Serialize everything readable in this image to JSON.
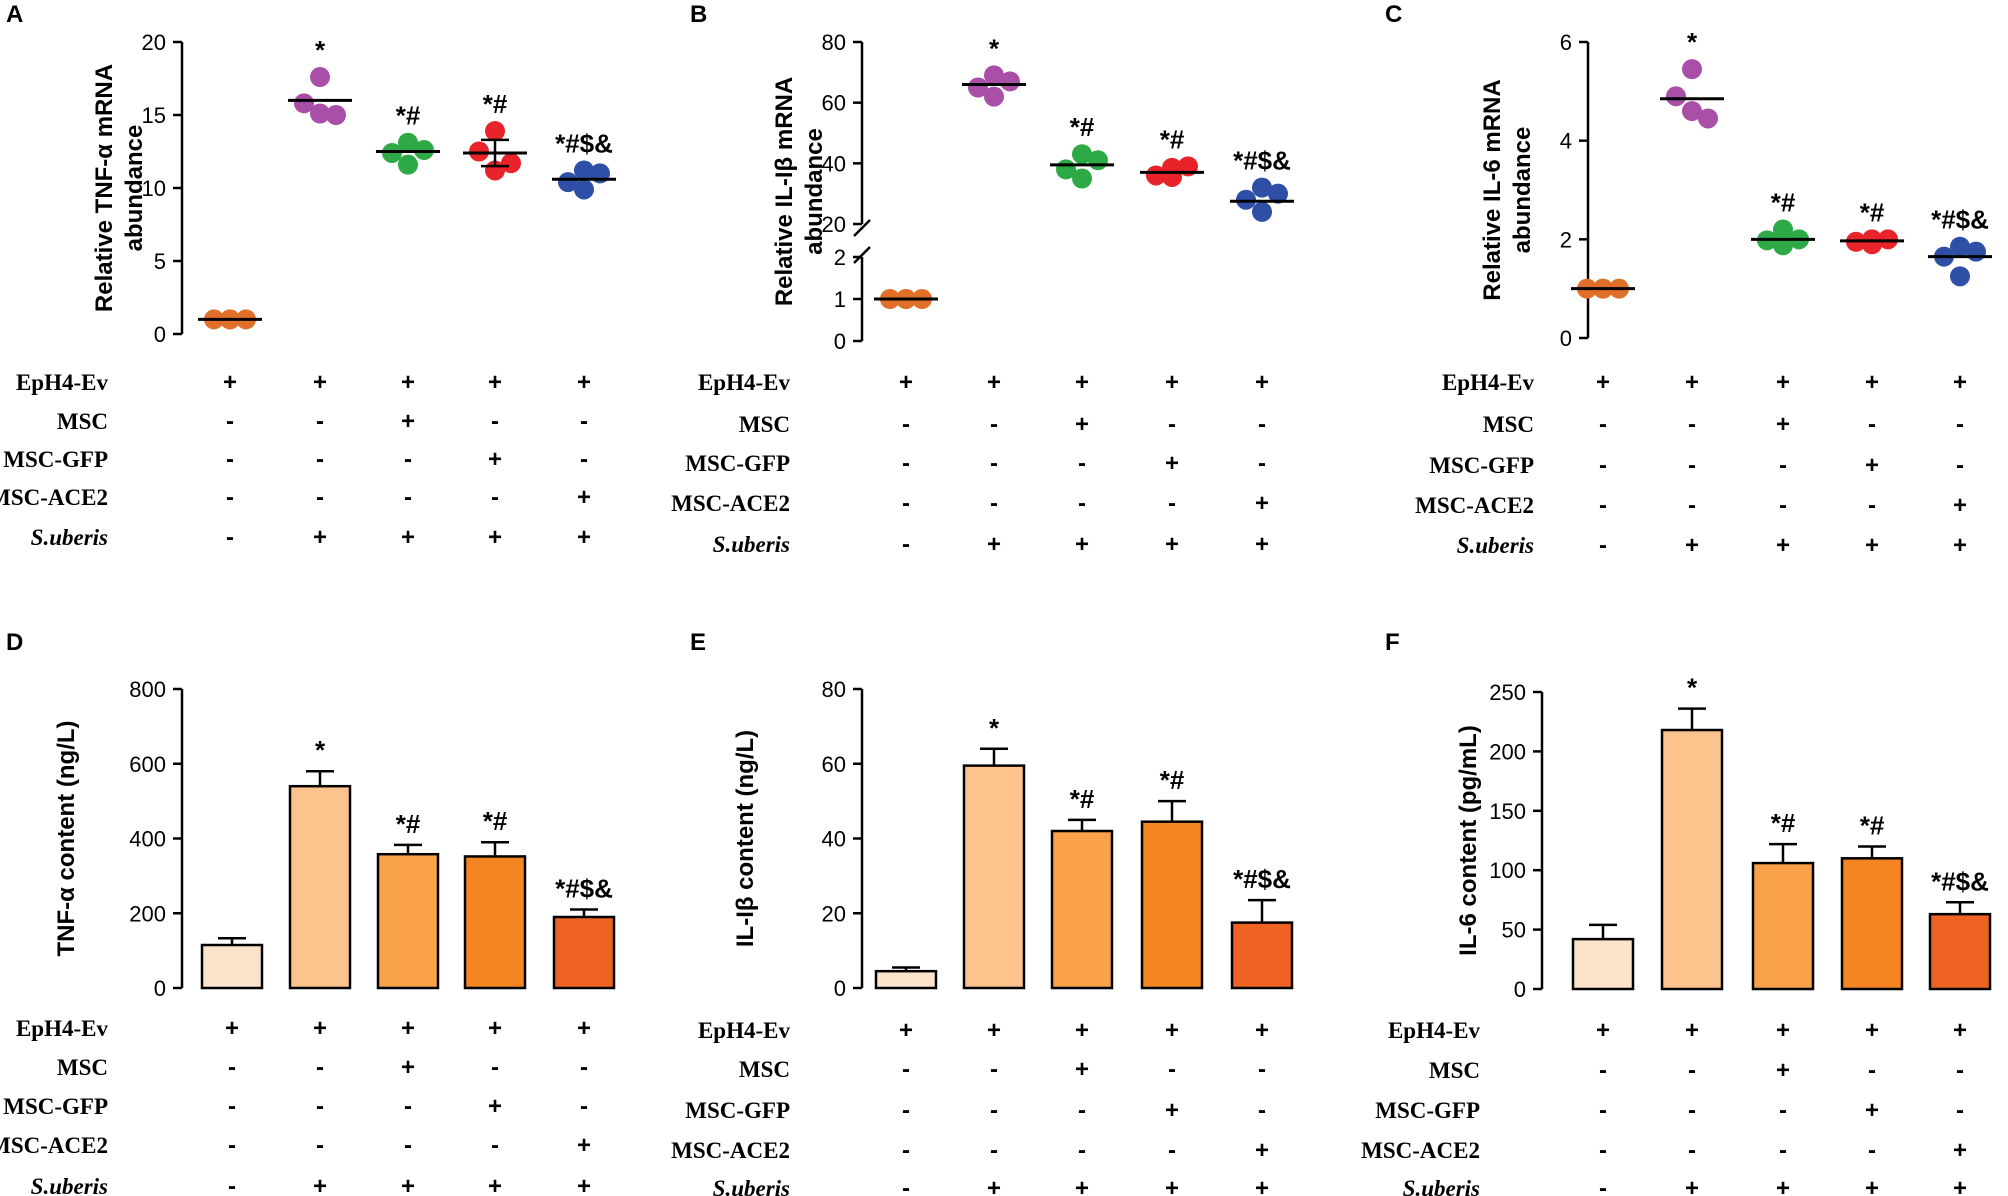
{
  "treatment_rows": [
    "EpH4-Ev",
    "MSC",
    "MSC-GFP",
    "MSC-ACE2",
    "S.uberis"
  ],
  "treatment_signs": [
    [
      "+",
      "+",
      "+",
      "+",
      "+"
    ],
    [
      "-",
      "-",
      "+",
      "-",
      "-"
    ],
    [
      "-",
      "-",
      "-",
      "+",
      "-"
    ],
    [
      "-",
      "-",
      "-",
      "-",
      "+"
    ],
    [
      "-",
      "+",
      "+",
      "+",
      "+"
    ]
  ],
  "group_colors": {
    "scatter": [
      "#E07028",
      "#A94FA7",
      "#2DAA45",
      "#E8232A",
      "#2F4FA6"
    ],
    "bar": [
      "#FCE3CB",
      "#FCC38C",
      "#F9A24A",
      "#F58422",
      "#EE6324"
    ]
  },
  "chart_data": [
    {
      "panel": "A",
      "type": "scatter",
      "ylabel": [
        "Relative TNF-α mRNA",
        "abundance"
      ],
      "ylim": [
        0,
        20
      ],
      "yticks": [
        "0",
        "5",
        "10",
        "15",
        "20"
      ],
      "means": [
        1.0,
        16.0,
        12.5,
        12.4,
        10.6
      ],
      "sems": [
        0.03,
        0.6,
        0.4,
        0.9,
        0.4
      ],
      "points": [
        [
          1.0,
          1.0,
          1.0,
          1.0
        ],
        [
          17.6,
          15.8,
          15.1,
          15.0
        ],
        [
          13.1,
          12.4,
          11.6,
          12.6
        ],
        [
          13.9,
          12.5,
          11.2,
          11.7
        ],
        [
          11.2,
          10.4,
          9.9,
          11.0
        ]
      ],
      "annotations": [
        "",
        "*",
        "*#",
        "*#",
        "*#$&"
      ]
    },
    {
      "panel": "B",
      "type": "scatter",
      "ylabel": [
        "Relative IL-Iβ mRNA",
        "abundance"
      ],
      "axis_break": true,
      "lower_ylim": [
        0,
        2
      ],
      "lower_yticks": [
        "0",
        "1",
        "2"
      ],
      "upper_ylim": [
        20,
        80
      ],
      "upper_yticks": [
        "20",
        "40",
        "60",
        "80"
      ],
      "means": [
        1.0,
        66.0,
        39.5,
        37.0,
        27.5
      ],
      "sems": [
        0.02,
        1.8,
        2.0,
        1.6,
        2.2
      ],
      "points": [
        [
          1.0,
          1.0,
          1.0,
          1.0
        ],
        [
          69.0,
          65.0,
          62.0,
          67.0
        ],
        [
          43.0,
          38.0,
          35.0,
          41.0
        ],
        [
          38.5,
          36.0,
          35.5,
          39.0
        ],
        [
          32.0,
          28.0,
          24.0,
          30.0
        ]
      ],
      "annotations": [
        "",
        "*",
        "*#",
        "*#",
        "*#$&"
      ]
    },
    {
      "panel": "C",
      "type": "scatter",
      "ylabel": [
        "Relative IL-6 mRNA",
        "abundance"
      ],
      "ylim": [
        0,
        6
      ],
      "yticks": [
        "0",
        "2",
        "4",
        "6"
      ],
      "means": [
        1.0,
        4.85,
        2.0,
        1.97,
        1.65
      ],
      "sems": [
        0.01,
        0.22,
        0.08,
        0.05,
        0.12
      ],
      "points": [
        [
          1.0,
          1.0,
          1.0,
          1.0
        ],
        [
          5.45,
          4.9,
          4.6,
          4.45
        ],
        [
          2.2,
          1.98,
          1.88,
          2.0
        ],
        [
          2.0,
          1.95,
          1.9,
          2.0
        ],
        [
          1.85,
          1.65,
          1.25,
          1.75
        ]
      ],
      "annotations": [
        "",
        "*",
        "*#",
        "*#",
        "*#$&"
      ]
    },
    {
      "panel": "D",
      "type": "bar",
      "ylabel": [
        "TNF-α content (ng/L)"
      ],
      "ylim": [
        0,
        800
      ],
      "yticks": [
        "0",
        "200",
        "400",
        "600",
        "800"
      ],
      "values": [
        115,
        540,
        358,
        352,
        190
      ],
      "errors": [
        18,
        40,
        25,
        38,
        20
      ],
      "annotations": [
        "",
        "*",
        "*#",
        "*#",
        "*#$&"
      ]
    },
    {
      "panel": "E",
      "type": "bar",
      "ylabel": [
        "IL-Iβ content (ng/L)"
      ],
      "ylim": [
        0,
        80
      ],
      "yticks": [
        "0",
        "20",
        "40",
        "60",
        "80"
      ],
      "values": [
        4.5,
        59.5,
        42.0,
        44.5,
        17.5
      ],
      "errors": [
        1.0,
        4.5,
        3.0,
        5.5,
        6.0
      ],
      "annotations": [
        "",
        "*",
        "*#",
        "*#",
        "*#$&"
      ]
    },
    {
      "panel": "F",
      "type": "bar",
      "ylabel": [
        "IL-6 content (pg/mL)"
      ],
      "ylim": [
        0,
        250
      ],
      "yticks": [
        "0",
        "50",
        "100",
        "150",
        "200",
        "250"
      ],
      "values": [
        42,
        218,
        106,
        110,
        63
      ],
      "errors": [
        12,
        18,
        16,
        10,
        10
      ],
      "annotations": [
        "",
        "*",
        "*#",
        "*#",
        "*#$&"
      ]
    }
  ]
}
